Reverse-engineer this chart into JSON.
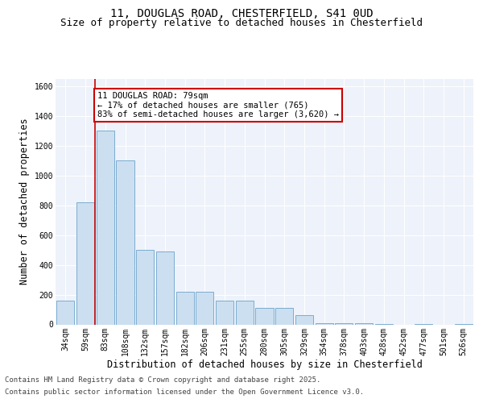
{
  "title_line1": "11, DOUGLAS ROAD, CHESTERFIELD, S41 0UD",
  "title_line2": "Size of property relative to detached houses in Chesterfield",
  "xlabel": "Distribution of detached houses by size in Chesterfield",
  "ylabel": "Number of detached properties",
  "categories": [
    "34sqm",
    "59sqm",
    "83sqm",
    "108sqm",
    "132sqm",
    "157sqm",
    "182sqm",
    "206sqm",
    "231sqm",
    "255sqm",
    "280sqm",
    "305sqm",
    "329sqm",
    "354sqm",
    "378sqm",
    "403sqm",
    "428sqm",
    "452sqm",
    "477sqm",
    "501sqm",
    "526sqm"
  ],
  "values": [
    160,
    820,
    1300,
    1100,
    500,
    490,
    220,
    220,
    160,
    160,
    110,
    110,
    60,
    10,
    10,
    10,
    5,
    0,
    5,
    0,
    5
  ],
  "bar_color": "#ccdff0",
  "bar_edge_color": "#7aadd0",
  "property_line_color": "#cc0000",
  "property_line_x": 1.48,
  "annotation_text": "11 DOUGLAS ROAD: 79sqm\n← 17% of detached houses are smaller (765)\n83% of semi-detached houses are larger (3,620) →",
  "annotation_box_color": "#cc0000",
  "footer_line1": "Contains HM Land Registry data © Crown copyright and database right 2025.",
  "footer_line2": "Contains public sector information licensed under the Open Government Licence v3.0.",
  "ylim": [
    0,
    1650
  ],
  "yticks": [
    0,
    200,
    400,
    600,
    800,
    1000,
    1200,
    1400,
    1600
  ],
  "background_color": "#eef2fa",
  "grid_color": "#ffffff",
  "title_fontsize": 10,
  "subtitle_fontsize": 9,
  "axis_label_fontsize": 8.5,
  "tick_fontsize": 7,
  "footer_fontsize": 6.5,
  "annotation_fontsize": 7.5
}
